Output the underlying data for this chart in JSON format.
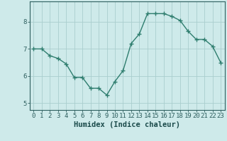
{
  "x": [
    0,
    1,
    2,
    3,
    4,
    5,
    6,
    7,
    8,
    9,
    10,
    11,
    12,
    13,
    14,
    15,
    16,
    17,
    18,
    19,
    20,
    21,
    22,
    23
  ],
  "y": [
    7.0,
    7.0,
    6.75,
    6.65,
    6.45,
    5.95,
    5.95,
    5.55,
    5.55,
    5.3,
    5.8,
    6.2,
    7.2,
    7.55,
    8.3,
    8.3,
    8.3,
    8.2,
    8.05,
    7.65,
    7.35,
    7.35,
    7.1,
    6.5
  ],
  "xlabel": "Humidex (Indice chaleur)",
  "xlim": [
    -0.5,
    23.5
  ],
  "ylim": [
    4.75,
    8.75
  ],
  "yticks": [
    5,
    6,
    7,
    8
  ],
  "xticks": [
    0,
    1,
    2,
    3,
    4,
    5,
    6,
    7,
    8,
    9,
    10,
    11,
    12,
    13,
    14,
    15,
    16,
    17,
    18,
    19,
    20,
    21,
    22,
    23
  ],
  "line_color": "#2e7d6e",
  "marker": "+",
  "marker_size": 4,
  "bg_color": "#ceeaea",
  "grid_color": "#aacece",
  "tick_color": "#2e5f5f",
  "label_color": "#1a4a4a",
  "tick_label_fontsize": 6.5,
  "xlabel_fontsize": 7.5,
  "line_width": 1.0
}
